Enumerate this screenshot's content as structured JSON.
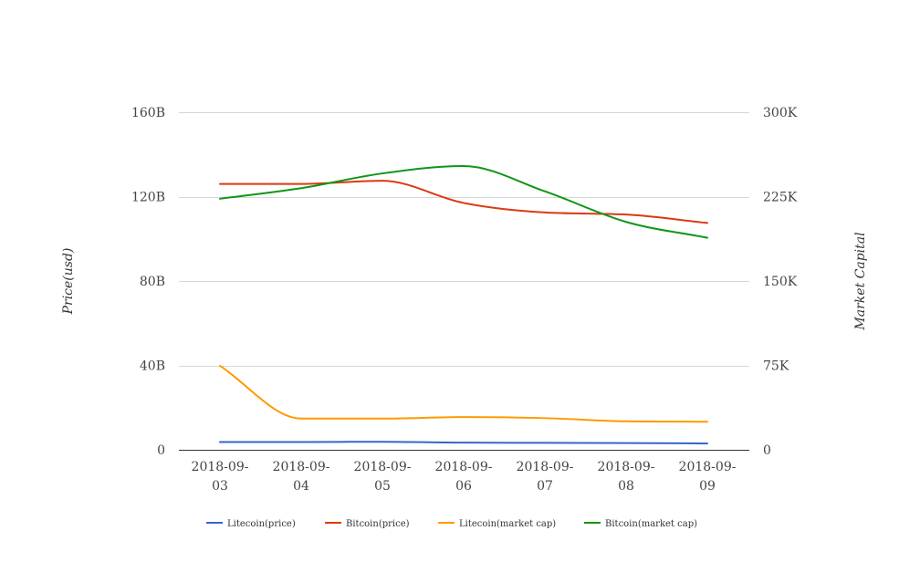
{
  "chart_data": {
    "type": "line",
    "x": [
      "2018-09-03",
      "2018-09-04",
      "2018-09-05",
      "2018-09-06",
      "2018-09-07",
      "2018-09-08",
      "2018-09-09"
    ],
    "x_tick_labels": [
      [
        "2018-09-",
        "03"
      ],
      [
        "2018-09-",
        "04"
      ],
      [
        "2018-09-",
        "05"
      ],
      [
        "2018-09-",
        "06"
      ],
      [
        "2018-09-",
        "07"
      ],
      [
        "2018-09-",
        "08"
      ],
      [
        "2018-09-",
        "09"
      ]
    ],
    "y_left": {
      "label": "Price(usd)",
      "range": [
        0,
        160000000000
      ],
      "ticks": [
        0,
        40000000000,
        80000000000,
        120000000000,
        160000000000
      ],
      "tick_labels": [
        "0",
        "40B",
        "80B",
        "120B",
        "160B"
      ]
    },
    "y_right": {
      "label": "Market Capital",
      "range": [
        0,
        300000
      ],
      "ticks": [
        0,
        75000,
        150000,
        225000,
        300000
      ],
      "tick_labels": [
        "0",
        "75K",
        "150K",
        "225K",
        "300K"
      ]
    },
    "grid": true,
    "legend_position": "bottom",
    "series": [
      {
        "name": "Litecoin(price)",
        "color": "#3366cc",
        "values": [
          3700000000,
          3700000000,
          3800000000,
          3400000000,
          3300000000,
          3200000000,
          3000000000
        ]
      },
      {
        "name": "Bitcoin(price)",
        "color": "#dc3912",
        "values": [
          126000000000,
          126000000000,
          127500000000,
          117000000000,
          112500000000,
          111500000000,
          107500000000
        ]
      },
      {
        "name": "Litecoin(market cap)",
        "color": "#ff9900",
        "values": [
          39800000000,
          14800000000,
          14800000000,
          15500000000,
          15000000000,
          13500000000,
          13300000000
        ]
      },
      {
        "name": "Bitcoin(market cap)",
        "color": "#109618",
        "values": [
          119000000000,
          124000000000,
          131000000000,
          134500000000,
          122500000000,
          108000000000,
          100500000000
        ]
      }
    ]
  }
}
